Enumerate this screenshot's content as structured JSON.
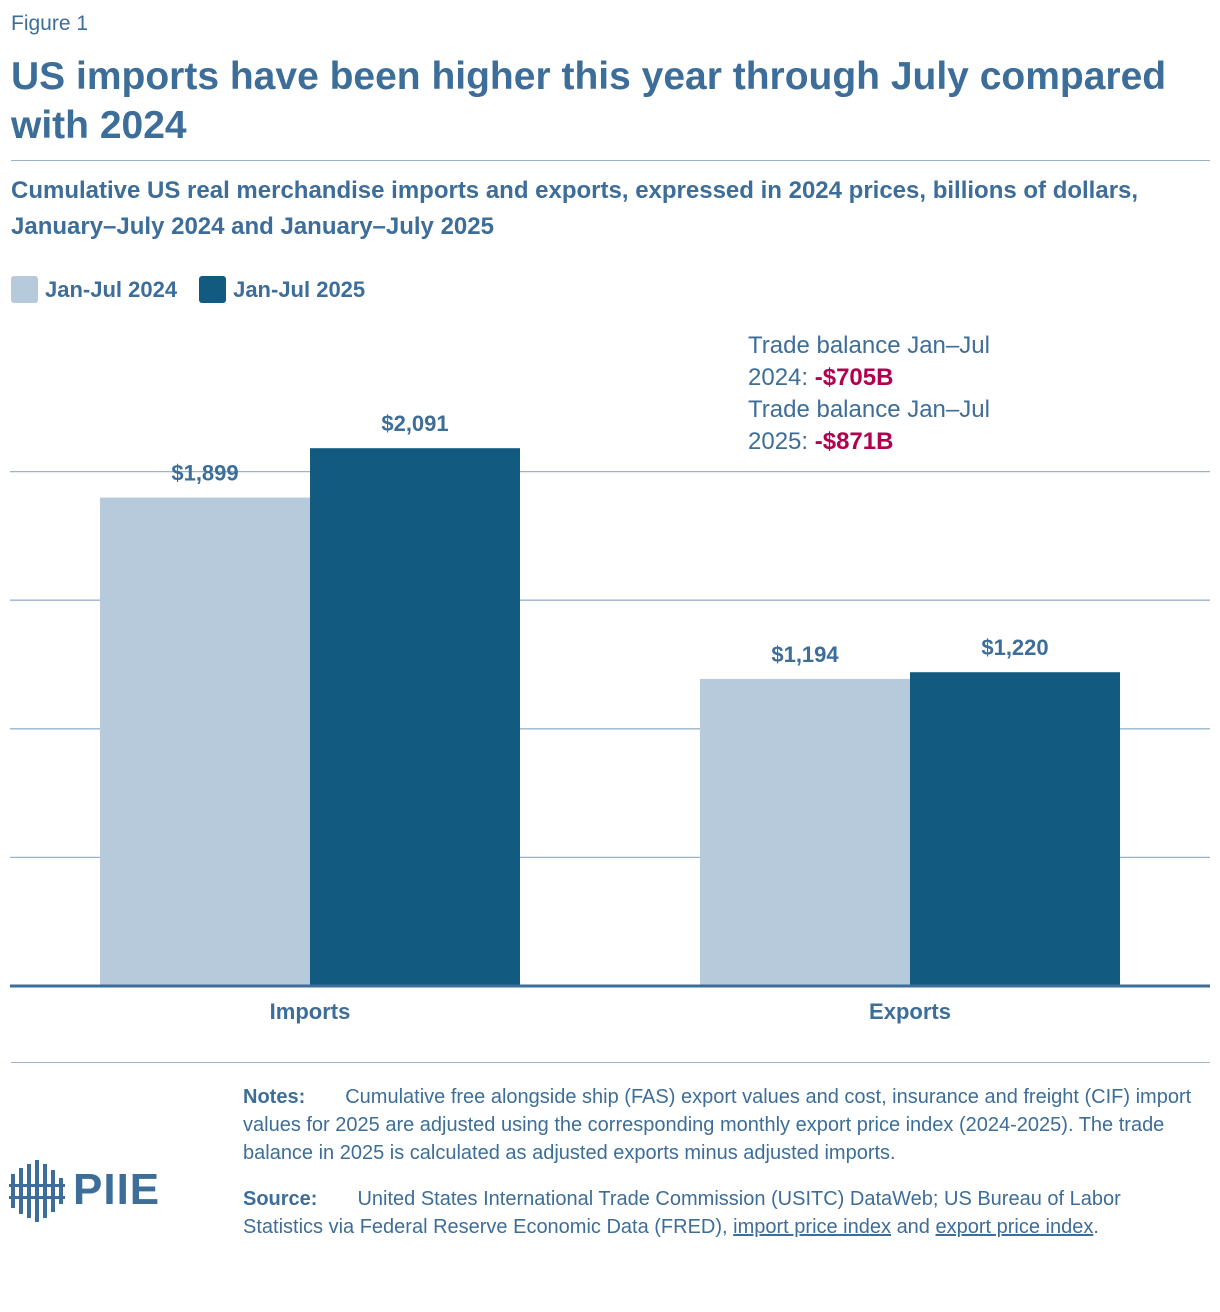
{
  "figure_label": "Figure 1",
  "title": "US imports have been higher this year through July compared with 2024",
  "subtitle": "Cumulative US real merchandise imports and exports, expressed in 2024 prices, billions of dollars, January–July 2024 and January–July 2025",
  "colors": {
    "brand": "#3d6d99",
    "series_2024": "#b7cadb",
    "series_2025": "#125a80",
    "negative": "#b0004f",
    "grid": "#9ab3c9"
  },
  "chart_data": {
    "type": "bar",
    "categories": [
      "Imports",
      "Exports"
    ],
    "series": [
      {
        "name": "Jan-Jul 2024",
        "values": [
          1899,
          1194
        ],
        "labels": [
          "$1,899",
          "$1,194"
        ]
      },
      {
        "name": "Jan-Jul 2025",
        "values": [
          2091,
          1220
        ],
        "labels": [
          "$2,091",
          "$1,220"
        ]
      }
    ],
    "ylim": [
      0,
      2500
    ],
    "y_grid": [
      500,
      1000,
      1500,
      2000
    ],
    "grid": true,
    "legend": "top-left",
    "annotations": [
      {
        "prefix": "Trade balance Jan–Jul",
        "year": "2024:",
        "value": "-$705B"
      },
      {
        "prefix": "Trade balance Jan–Jul",
        "year": "2025:",
        "value": "-$871B"
      }
    ]
  },
  "notes": {
    "label": "Notes:",
    "text": "Cumulative free alongside ship (FAS) export values and cost, insurance and freight (CIF) import values for 2025 are adjusted using the corresponding monthly export price index (2024-2025). The trade balance in 2025 is calculated as adjusted exports minus adjusted imports."
  },
  "source": {
    "label": "Source:",
    "text_before": "United States International Trade Commission (USITC) DataWeb; US Bureau of Labor Statistics via Federal Reserve Economic Data (FRED),",
    "link1": "import price index",
    "between": "and",
    "link2": "export price index",
    "end": "."
  },
  "logo": {
    "text": "PIIE",
    "icon": "piie-building-icon"
  }
}
